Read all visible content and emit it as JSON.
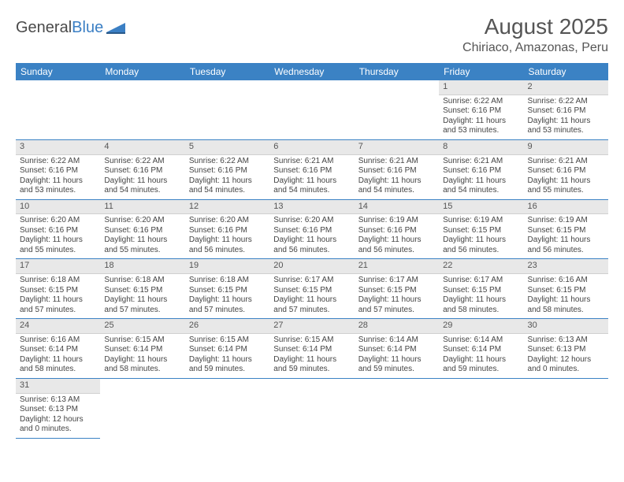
{
  "logo": {
    "text1": "General",
    "text2": "Blue"
  },
  "title": "August 2025",
  "location": "Chiriaco, Amazonas, Peru",
  "colors": {
    "header_bg": "#3b82c4",
    "daynum_bg": "#e8e8e8"
  },
  "day_headers": [
    "Sunday",
    "Monday",
    "Tuesday",
    "Wednesday",
    "Thursday",
    "Friday",
    "Saturday"
  ],
  "first_weekday": 5,
  "days": [
    {
      "n": 1,
      "sr": "6:22 AM",
      "ss": "6:16 PM",
      "dl": "11 hours and 53 minutes."
    },
    {
      "n": 2,
      "sr": "6:22 AM",
      "ss": "6:16 PM",
      "dl": "11 hours and 53 minutes."
    },
    {
      "n": 3,
      "sr": "6:22 AM",
      "ss": "6:16 PM",
      "dl": "11 hours and 53 minutes."
    },
    {
      "n": 4,
      "sr": "6:22 AM",
      "ss": "6:16 PM",
      "dl": "11 hours and 54 minutes."
    },
    {
      "n": 5,
      "sr": "6:22 AM",
      "ss": "6:16 PM",
      "dl": "11 hours and 54 minutes."
    },
    {
      "n": 6,
      "sr": "6:21 AM",
      "ss": "6:16 PM",
      "dl": "11 hours and 54 minutes."
    },
    {
      "n": 7,
      "sr": "6:21 AM",
      "ss": "6:16 PM",
      "dl": "11 hours and 54 minutes."
    },
    {
      "n": 8,
      "sr": "6:21 AM",
      "ss": "6:16 PM",
      "dl": "11 hours and 54 minutes."
    },
    {
      "n": 9,
      "sr": "6:21 AM",
      "ss": "6:16 PM",
      "dl": "11 hours and 55 minutes."
    },
    {
      "n": 10,
      "sr": "6:20 AM",
      "ss": "6:16 PM",
      "dl": "11 hours and 55 minutes."
    },
    {
      "n": 11,
      "sr": "6:20 AM",
      "ss": "6:16 PM",
      "dl": "11 hours and 55 minutes."
    },
    {
      "n": 12,
      "sr": "6:20 AM",
      "ss": "6:16 PM",
      "dl": "11 hours and 56 minutes."
    },
    {
      "n": 13,
      "sr": "6:20 AM",
      "ss": "6:16 PM",
      "dl": "11 hours and 56 minutes."
    },
    {
      "n": 14,
      "sr": "6:19 AM",
      "ss": "6:16 PM",
      "dl": "11 hours and 56 minutes."
    },
    {
      "n": 15,
      "sr": "6:19 AM",
      "ss": "6:15 PM",
      "dl": "11 hours and 56 minutes."
    },
    {
      "n": 16,
      "sr": "6:19 AM",
      "ss": "6:15 PM",
      "dl": "11 hours and 56 minutes."
    },
    {
      "n": 17,
      "sr": "6:18 AM",
      "ss": "6:15 PM",
      "dl": "11 hours and 57 minutes."
    },
    {
      "n": 18,
      "sr": "6:18 AM",
      "ss": "6:15 PM",
      "dl": "11 hours and 57 minutes."
    },
    {
      "n": 19,
      "sr": "6:18 AM",
      "ss": "6:15 PM",
      "dl": "11 hours and 57 minutes."
    },
    {
      "n": 20,
      "sr": "6:17 AM",
      "ss": "6:15 PM",
      "dl": "11 hours and 57 minutes."
    },
    {
      "n": 21,
      "sr": "6:17 AM",
      "ss": "6:15 PM",
      "dl": "11 hours and 57 minutes."
    },
    {
      "n": 22,
      "sr": "6:17 AM",
      "ss": "6:15 PM",
      "dl": "11 hours and 58 minutes."
    },
    {
      "n": 23,
      "sr": "6:16 AM",
      "ss": "6:15 PM",
      "dl": "11 hours and 58 minutes."
    },
    {
      "n": 24,
      "sr": "6:16 AM",
      "ss": "6:14 PM",
      "dl": "11 hours and 58 minutes."
    },
    {
      "n": 25,
      "sr": "6:15 AM",
      "ss": "6:14 PM",
      "dl": "11 hours and 58 minutes."
    },
    {
      "n": 26,
      "sr": "6:15 AM",
      "ss": "6:14 PM",
      "dl": "11 hours and 59 minutes."
    },
    {
      "n": 27,
      "sr": "6:15 AM",
      "ss": "6:14 PM",
      "dl": "11 hours and 59 minutes."
    },
    {
      "n": 28,
      "sr": "6:14 AM",
      "ss": "6:14 PM",
      "dl": "11 hours and 59 minutes."
    },
    {
      "n": 29,
      "sr": "6:14 AM",
      "ss": "6:14 PM",
      "dl": "11 hours and 59 minutes."
    },
    {
      "n": 30,
      "sr": "6:13 AM",
      "ss": "6:13 PM",
      "dl": "12 hours and 0 minutes."
    },
    {
      "n": 31,
      "sr": "6:13 AM",
      "ss": "6:13 PM",
      "dl": "12 hours and 0 minutes."
    }
  ],
  "labels": {
    "sunrise": "Sunrise:",
    "sunset": "Sunset:",
    "daylight": "Daylight:"
  }
}
